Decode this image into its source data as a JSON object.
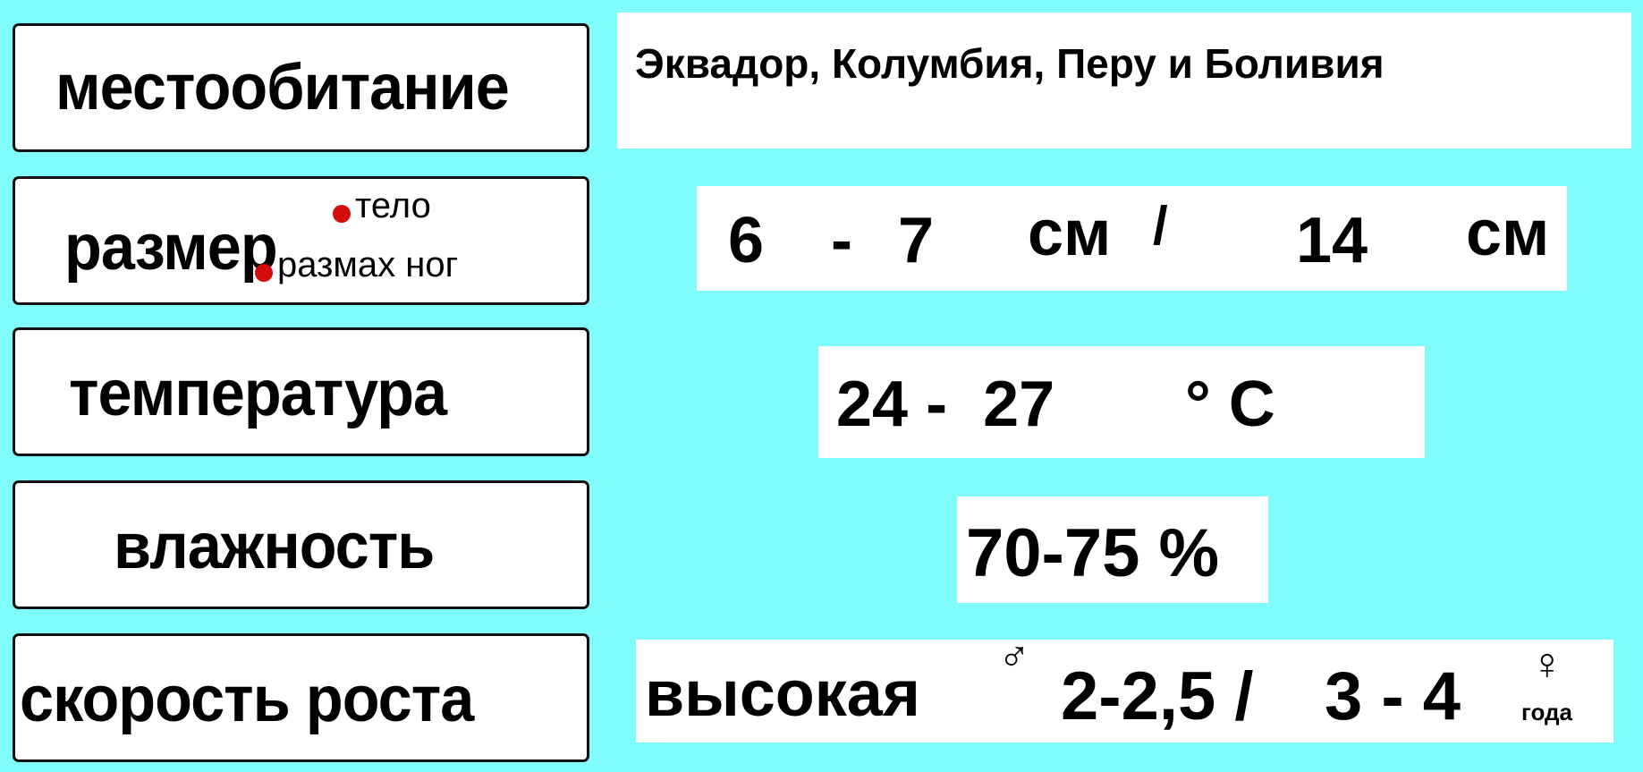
{
  "rows": [
    {
      "label": "местообитание",
      "value": "Эквадор, Колумбия, Перу и Боливия"
    },
    {
      "label": "размер",
      "legend": {
        "body": "тело",
        "legspan": "размах ног"
      },
      "value": {
        "body_min": "6",
        "dash": "-",
        "body_max": "7",
        "unit1": "см",
        "sep": "/",
        "legspan": "14",
        "unit2": "см"
      }
    },
    {
      "label": "температура",
      "value": {
        "range": "24 -  27",
        "unit": "° C"
      }
    },
    {
      "label": "влажность",
      "value": "70-75 %"
    },
    {
      "label": "скорость роста",
      "value": {
        "rate": "высокая",
        "male_symbol": "♂",
        "male": "2-2,5 /",
        "female": "3 - 4",
        "female_symbol": "♀",
        "unit": "года"
      }
    }
  ],
  "colors": {
    "background": "#80fcfc",
    "dot": "#d40c0c"
  }
}
